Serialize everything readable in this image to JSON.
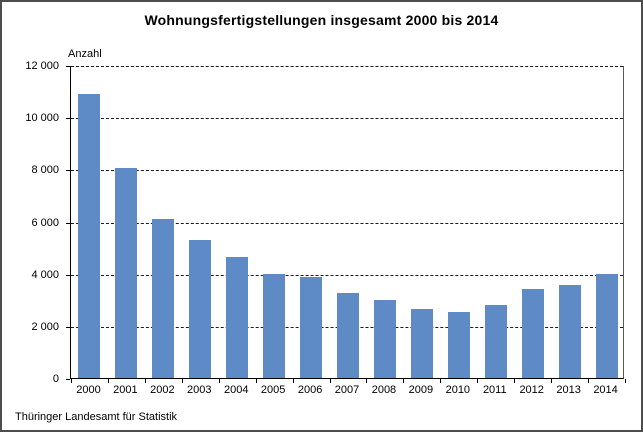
{
  "footer": {
    "source": "Thüringer Landesamt für Statistik"
  },
  "chart_data": {
    "type": "bar",
    "title": "Wohnungsfertigstellungen insgesamt 2000 bis 2014",
    "ylabel": "Anzahl",
    "xlabel": "",
    "categories": [
      "2000",
      "2001",
      "2002",
      "2003",
      "2004",
      "2005",
      "2006",
      "2007",
      "2008",
      "2009",
      "2010",
      "2011",
      "2012",
      "2013",
      "2014"
    ],
    "values": [
      10900,
      8050,
      6100,
      5300,
      4650,
      3980,
      3860,
      3250,
      2980,
      2650,
      2550,
      2790,
      3400,
      3550,
      4000
    ],
    "ylim": [
      0,
      12000
    ],
    "yticks": [
      0,
      2000,
      4000,
      6000,
      8000,
      10000,
      12000
    ],
    "ytick_labels": [
      "0",
      "2 000",
      "4 000",
      "6 000",
      "8 000",
      "10 000",
      "12 000"
    ],
    "grid": "dashed-horizontal",
    "legend": "none",
    "bar_color": "#5e8bc6"
  }
}
